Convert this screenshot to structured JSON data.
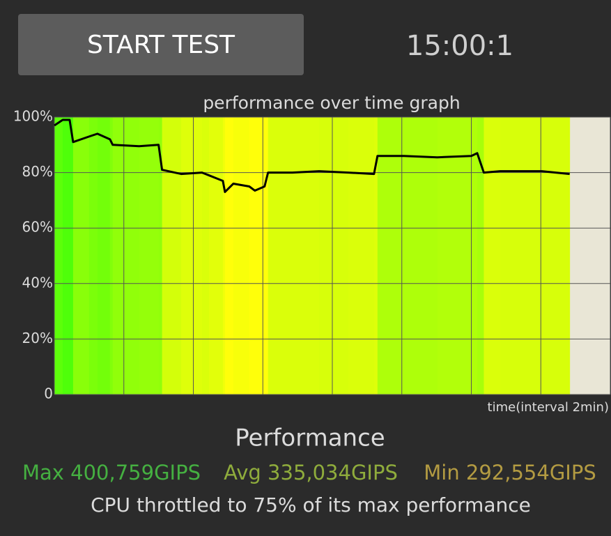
{
  "header": {
    "button": "START TEST",
    "timer": "15:00:1"
  },
  "chart_data": {
    "type": "line",
    "title": "performance over time graph",
    "x_label": "time(interval 2min)",
    "series": [
      {
        "color": "#000000",
        "x": [
          0,
          0.24,
          0.44,
          0.54,
          1.0,
          1.24,
          1.6,
          1.68,
          2.44,
          3.0,
          3.1,
          3.65,
          4.25,
          4.45,
          4.85,
          4.91,
          5.15,
          5.61,
          5.77,
          6.05,
          6.15,
          6.85,
          7.62,
          8.46,
          9.2,
          9.3,
          10.06,
          11.02,
          12.0,
          12.17,
          12.36,
          12.83,
          14.03,
          14.83
        ],
        "values": [
          97,
          99,
          99,
          91,
          93,
          94,
          92,
          90,
          89.5,
          90,
          81,
          79.5,
          80,
          79,
          77,
          73,
          76,
          75,
          73.5,
          75,
          80,
          80,
          80.5,
          80,
          79.5,
          86,
          86,
          85.5,
          86,
          87,
          80,
          80.5,
          80.5,
          79.5
        ]
      }
    ],
    "xlim": [
      0,
      16
    ],
    "xticks": [
      0,
      2,
      4,
      6,
      8,
      10,
      12,
      14,
      16
    ],
    "ylim": [
      0,
      100
    ],
    "yticks": [
      0,
      {
        "value": 20,
        "label": "20%"
      },
      {
        "value": 40,
        "label": "40%"
      },
      {
        "value": 60,
        "label": "60%"
      },
      {
        "value": 80,
        "label": "80%"
      },
      {
        "value": 100,
        "label": "100%"
      }
    ],
    "grid": true,
    "plot_background": "#e9e6d6"
  },
  "stats": {
    "heading": "Performance",
    "max": "Max 400,759GIPS",
    "avg": "Avg 335,034GIPS",
    "min": "Min 292,554GIPS",
    "summary": "CPU throttled to 75% of its max performance"
  }
}
